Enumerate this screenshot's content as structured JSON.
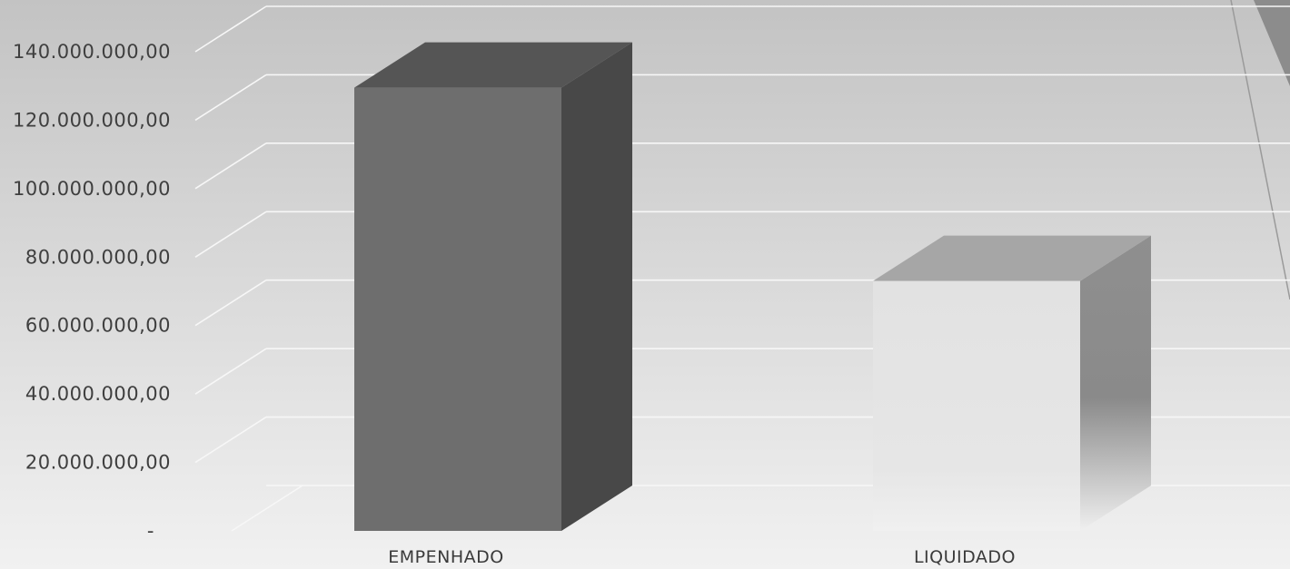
{
  "chart_data": {
    "type": "bar",
    "categories": [
      "EMPENHADO",
      "LIQUIDADO"
    ],
    "values": [
      129500000,
      73000000
    ],
    "ylim": [
      0,
      140000000
    ],
    "ytick_values": [
      0,
      20000000,
      40000000,
      60000000,
      80000000,
      100000000,
      120000000,
      140000000
    ],
    "ytick_labels": [
      "-",
      "20.000.000,00",
      "40.000.000,00",
      "60.000.000,00",
      "80.000.000,00",
      "100.000.000,00",
      "120.000.000,00",
      "140.000.000,00"
    ],
    "title": "",
    "xlabel": "",
    "ylabel": "",
    "grid": true,
    "legend": "none",
    "style": "3d-clustered-column",
    "colors": {
      "bar_front": [
        "#6e6e6e",
        "#e2e2e2"
      ],
      "bar_side": [
        "#484848",
        "#8f8f8f"
      ],
      "bar_top": [
        "#555555",
        "#a6a6a6"
      ],
      "background_top": "#c3c3c3",
      "background_bottom": "#f1f1f1",
      "gridline": "#f7f7f7"
    }
  }
}
